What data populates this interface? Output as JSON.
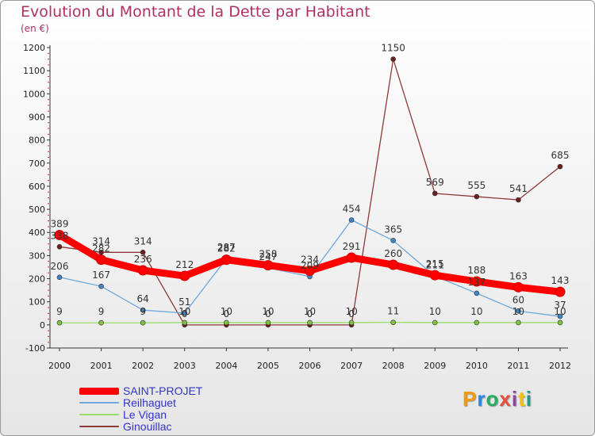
{
  "title": "Evolution du Montant de la Dette par Habitant",
  "unit_label": "(en €)",
  "logo_text": "Proxiti",
  "logo_colors": [
    "#f39c12",
    "#2e86de",
    "#27ae60",
    "#e74c3c",
    "#8e44ad",
    "#f1c40f",
    "#16a085"
  ],
  "chart_data": {
    "type": "line",
    "title": "Evolution du Montant de la Dette par Habitant",
    "ylabel": "(en €)",
    "xlabel": "",
    "x": [
      "2000",
      "2001",
      "2002",
      "2003",
      "2004",
      "2005",
      "2006",
      "2007",
      "2008",
      "2009",
      "2010",
      "2011",
      "2012"
    ],
    "ylim": [
      -100,
      1200
    ],
    "yticks": [
      -100,
      0,
      100,
      200,
      300,
      400,
      500,
      600,
      700,
      800,
      900,
      1000,
      1100,
      1200
    ],
    "grid": false,
    "legend_position": "bottom-left",
    "series": [
      {
        "name": "SAINT-PROJET",
        "color": "#ff0000",
        "marker_color": "#ff0000",
        "values": [
          389,
          282,
          236,
          212,
          282,
          258,
          234,
          291,
          260,
          215,
          188,
          163,
          143
        ],
        "labels": [
          "389",
          "282",
          "236",
          "212",
          "282",
          "258",
          "234",
          "291",
          "260",
          "215",
          "188",
          "163",
          "143"
        ]
      },
      {
        "name": "Reilhaguet",
        "color": "#6fa8dc",
        "marker_color": "#3d85c6",
        "values": [
          206,
          167,
          64,
          51,
          287,
          247,
          209,
          454,
          365,
          211,
          137,
          60,
          37
        ],
        "labels": [
          "206",
          "167",
          "64",
          "51",
          "287",
          "247",
          "209",
          "454",
          "365",
          "211",
          "137",
          "60",
          "37"
        ]
      },
      {
        "name": "Le Vigan",
        "color": "#99dd66",
        "marker_color": "#7fc241",
        "values": [
          9,
          9,
          9,
          10,
          10,
          10,
          10,
          10,
          11,
          10,
          10,
          10,
          10
        ],
        "labels": [
          "9",
          "9",
          "9",
          "10",
          "10",
          "10",
          "10",
          "10",
          "11",
          "10",
          "10",
          "10",
          "10"
        ]
      },
      {
        "name": "Ginouillac",
        "color": "#8b3a3a",
        "marker_color": "#6b1f1f",
        "values": [
          338,
          314,
          314,
          0,
          0,
          0,
          0,
          0,
          1150,
          569,
          555,
          541,
          685
        ],
        "labels": [
          "338",
          "314",
          "314",
          "0",
          "0",
          "0",
          "0",
          "0",
          "1150",
          "569",
          "555",
          "541",
          "685"
        ]
      }
    ]
  }
}
